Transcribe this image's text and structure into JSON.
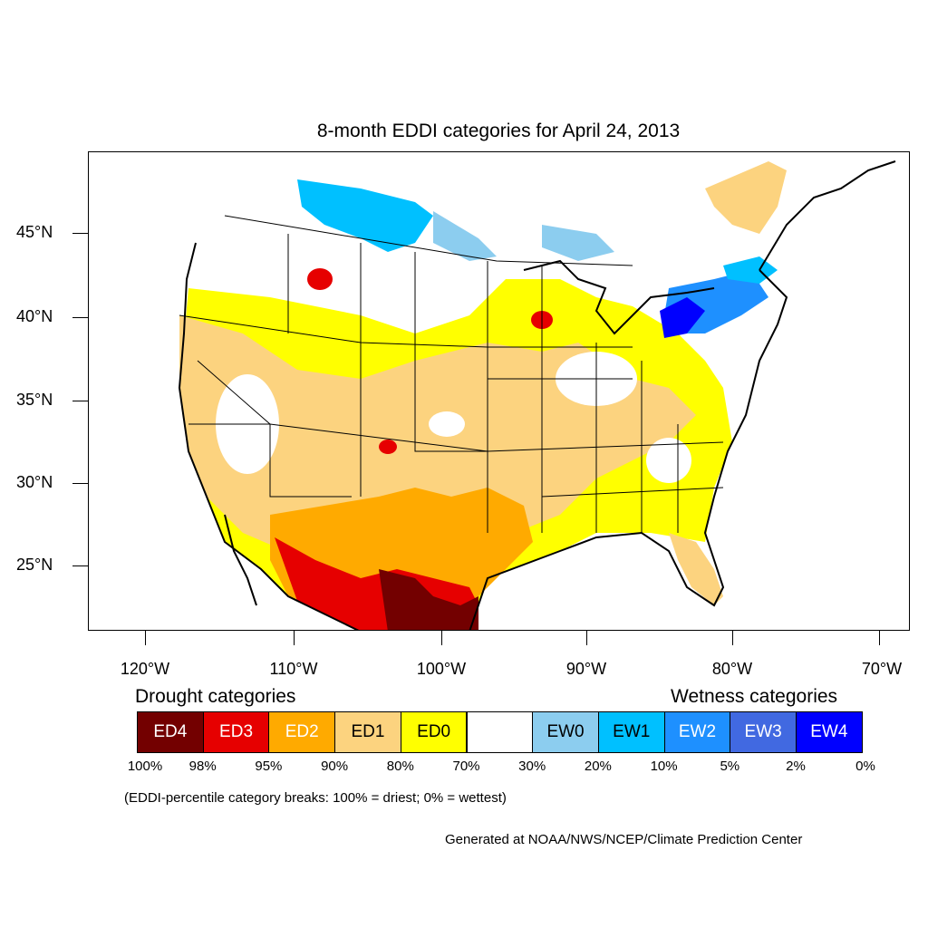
{
  "title": "8-month EDDI categories for April 24, 2013",
  "latitude_labels": [
    "45°N",
    "40°N",
    "35°N",
    "30°N",
    "25°N"
  ],
  "longitude_labels": [
    "120°W",
    "110°W",
    "100°W",
    "90°W",
    "80°W",
    "70°W"
  ],
  "legend": {
    "drought_heading": "Drought categories",
    "wetness_heading": "Wetness categories",
    "categories": [
      {
        "label": "ED4",
        "color": "#730000"
      },
      {
        "label": "ED3",
        "color": "#e60000"
      },
      {
        "label": "ED2",
        "color": "#ffaa00"
      },
      {
        "label": "ED1",
        "color": "#fcd37f"
      },
      {
        "label": "ED0",
        "color": "#ffff00"
      },
      {
        "label": "",
        "color": "#ffffff"
      },
      {
        "label": "EW0",
        "color": "#8ccdef"
      },
      {
        "label": "EW1",
        "color": "#00c0ff"
      },
      {
        "label": "EW2",
        "color": "#1e90ff"
      },
      {
        "label": "EW3",
        "color": "#4169e1"
      },
      {
        "label": "EW4",
        "color": "#0000ff"
      }
    ],
    "breaks": [
      "100%",
      "98%",
      "95%",
      "90%",
      "80%",
      "70%",
      "30%",
      "20%",
      "10%",
      "5%",
      "2%",
      "0%"
    ]
  },
  "note": "(EDDI-percentile category breaks: 100% = driest; 0% = wettest)",
  "credit": "Generated at NOAA/NWS/NCEP/Climate Prediction Center"
}
